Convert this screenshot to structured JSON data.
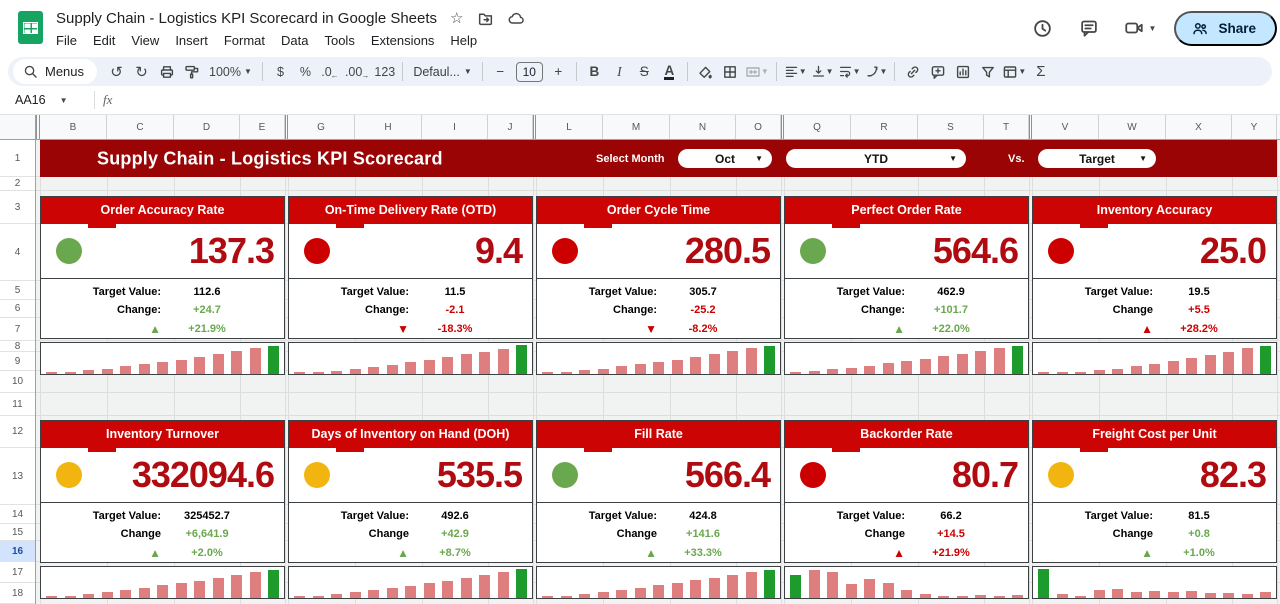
{
  "titlebar": {
    "title": "Supply Chain - Logistics KPI Scorecard in Google Sheets",
    "menus": [
      "File",
      "Edit",
      "View",
      "Insert",
      "Format",
      "Data",
      "Tools",
      "Extensions",
      "Help"
    ],
    "share_label": "Share"
  },
  "toolbar": {
    "menus_label": "Menus",
    "zoom_value": "100%",
    "currency": "$",
    "percent": "%",
    "dec_decrease": ".0",
    "dec_increase": ".00",
    "plain_number": "123",
    "font_name": "Defaul...",
    "minus": "−",
    "font_size": "10",
    "plus": "+",
    "bold": "B",
    "italic": "I",
    "strike": "S",
    "text_color": "A",
    "sum": "Σ"
  },
  "formula_bar": {
    "cell_ref": "AA16",
    "fx_label": "fx"
  },
  "sheet": {
    "columns": [
      "B",
      "C",
      "D",
      "E",
      "G",
      "H",
      "I",
      "J",
      "L",
      "M",
      "N",
      "O",
      "Q",
      "R",
      "S",
      "T",
      "V",
      "W",
      "X",
      "Y"
    ],
    "rows": [
      "1",
      "2",
      "3",
      "4",
      "5",
      "6",
      "7",
      "8",
      "9",
      "10",
      "11",
      "12",
      "13",
      "14",
      "15",
      "16",
      "17",
      "18"
    ],
    "selected_row": "16"
  },
  "banner": {
    "title": "Supply Chain - Logistics KPI Scorecard",
    "select_month_label": "Select Month",
    "month_value": "Oct",
    "period_value": "YTD",
    "vs_label": "Vs.",
    "compare_value": "Target"
  },
  "cards": [
    {
      "title": "Order Accuracy Rate",
      "status": "green",
      "value": "137.3",
      "target_label": "Target Value:",
      "target": "112.6",
      "change_label": "Change:",
      "change": "+24.7",
      "change_color": "green",
      "trend": "up",
      "trend_color": "green",
      "change_pct": "+21.9%",
      "spark": [
        3,
        8,
        13,
        18,
        25,
        32,
        40,
        48,
        56,
        65,
        75,
        85,
        93
      ],
      "spark_green_index": 12
    },
    {
      "title": "On-Time Delivery Rate (OTD)",
      "status": "red",
      "value": "9.4",
      "target_label": "Target Value:",
      "target": "11.5",
      "change_label": "Change:",
      "change": "-2.1",
      "change_color": "red",
      "trend": "down",
      "trend_color": "red",
      "change_pct": "-18.3%",
      "spark": [
        2,
        6,
        11,
        17,
        24,
        31,
        39,
        47,
        56,
        65,
        74,
        84,
        95
      ],
      "spark_green_index": 12
    },
    {
      "title": "Order Cycle Time",
      "status": "red",
      "value": "280.5",
      "target_label": "Target Value:",
      "target": "305.7",
      "change_label": "Change:",
      "change": "-25.2",
      "change_color": "red",
      "trend": "down",
      "trend_color": "red",
      "change_pct": "-8.2%",
      "spark": [
        3,
        7,
        12,
        18,
        25,
        32,
        40,
        48,
        57,
        66,
        76,
        86,
        94
      ],
      "spark_green_index": 12
    },
    {
      "title": "Perfect Order Rate",
      "status": "green",
      "value": "564.6",
      "target_label": "Target Value:",
      "target": "462.9",
      "change_label": "Change:",
      "change": "+101.7",
      "change_color": "green",
      "trend": "up",
      "trend_color": "green",
      "change_pct": "+22.0%",
      "spark": [
        4,
        9,
        15,
        21,
        28,
        35,
        43,
        51,
        60,
        68,
        77,
        86,
        94
      ],
      "spark_green_index": 12
    },
    {
      "title": "Inventory Accuracy",
      "status": "red",
      "value": "25.0",
      "target_label": "Target Value:",
      "target": "19.5",
      "change_label": "Change",
      "change": "+5.5",
      "change_color": "red",
      "trend": "up",
      "trend_color": "red",
      "change_pct": "+28.2%",
      "spark": [
        2,
        5,
        8,
        12,
        18,
        25,
        33,
        42,
        52,
        62,
        73,
        85,
        94
      ],
      "spark_green_index": 12
    },
    {
      "title": "Inventory Turnover",
      "status": "amber",
      "value": "332094.6",
      "target_label": "Target Value:",
      "target": "325452.7",
      "change_label": "Change",
      "change": "+6,641.9",
      "change_color": "green",
      "trend": "up",
      "trend_color": "green",
      "change_pct": "+2.0%",
      "spark": [
        3,
        8,
        14,
        20,
        27,
        34,
        42,
        50,
        58,
        67,
        76,
        85,
        93
      ],
      "spark_green_index": 12
    },
    {
      "title": "Days of Inventory on Hand (DOH)",
      "status": "amber",
      "value": "535.5",
      "target_label": "Target Value:",
      "target": "492.6",
      "change_label": "Change",
      "change": "+42.9",
      "change_color": "green",
      "trend": "up",
      "trend_color": "green",
      "change_pct": "+8.7%",
      "spark": [
        2,
        7,
        13,
        19,
        26,
        33,
        41,
        49,
        58,
        67,
        76,
        86,
        95
      ],
      "spark_green_index": 12
    },
    {
      "title": "Fill Rate",
      "status": "green",
      "value": "566.4",
      "target_label": "Target Value:",
      "target": "424.8",
      "change_label": "Change",
      "change": "+141.6",
      "change_color": "green",
      "trend": "up",
      "trend_color": "green",
      "change_pct": "+33.3%",
      "spark": [
        3,
        8,
        13,
        19,
        26,
        34,
        42,
        50,
        59,
        68,
        77,
        86,
        94
      ],
      "spark_green_index": 12
    },
    {
      "title": "Backorder Rate",
      "status": "red",
      "value": "80.7",
      "target_label": "Target Value:",
      "target": "66.2",
      "change_label": "Change",
      "change": "+14.5",
      "change_color": "red",
      "trend": "up",
      "trend_color": "red",
      "change_pct": "+21.9%",
      "spark": [
        78,
        92,
        85,
        45,
        62,
        50,
        28,
        12,
        8,
        6,
        10,
        6,
        10
      ],
      "spark_green_index": 0
    },
    {
      "title": "Freight Cost per Unit",
      "status": "amber",
      "value": "82.3",
      "target_label": "Target Value:",
      "target": "81.5",
      "change_label": "Change",
      "change": "+0.8",
      "change_color": "green",
      "trend": "up",
      "trend_color": "green",
      "change_pct": "+1.0%",
      "spark": [
        95,
        14,
        3,
        26,
        30,
        19,
        22,
        20,
        24,
        18,
        18,
        14,
        19
      ],
      "spark_green_index": 0
    }
  ],
  "colors": {
    "banner_red": "#9a0404",
    "card_header_red": "#cc0404",
    "value_red": "#b00b10",
    "green": "#6aa84f",
    "red": "#cc0000",
    "amber": "#f2b50f",
    "spark_pink": "#df7e7e",
    "spark_green": "#1d9b2c",
    "selected_row_bg": "#d3e3fd",
    "share_bg": "#c2e7ff"
  }
}
